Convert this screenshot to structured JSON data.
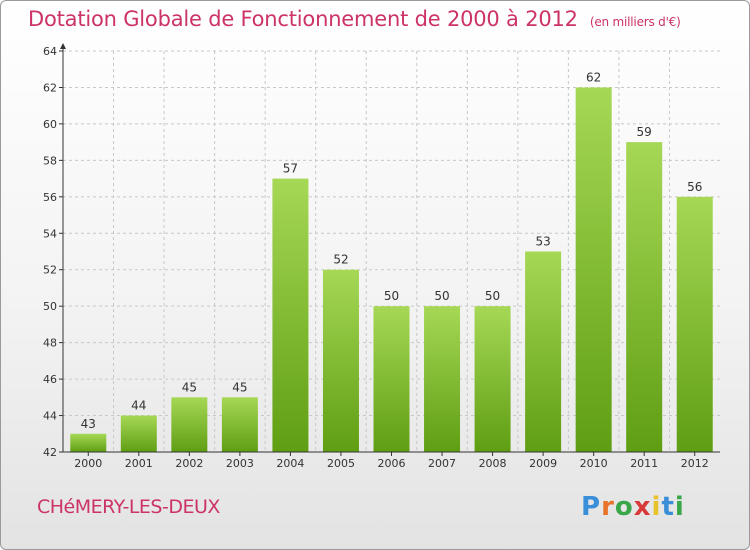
{
  "header": {
    "title": "Dotation Globale de Fonctionnement de 2000 à 2012",
    "unit": "(en milliers d'€)"
  },
  "footer": {
    "commune": "CHéMERY-LES-DEUX",
    "logo": {
      "text": "Proxiti",
      "letter_colors": [
        "#3a8fd8",
        "#e8742a",
        "#3aa64a",
        "#d83a3a",
        "#e8c22a",
        "#3a8fd8",
        "#3aa64a"
      ]
    }
  },
  "colors": {
    "title": "#cc3366",
    "bar_light": "#a6d855",
    "bar_dark": "#5f9e13",
    "axis": "#333333",
    "grid": "#c8c8c8"
  },
  "chart_data": {
    "type": "bar",
    "categories": [
      "2000",
      "2001",
      "2002",
      "2003",
      "2004",
      "2005",
      "2006",
      "2007",
      "2008",
      "2009",
      "2010",
      "2011",
      "2012"
    ],
    "values": [
      43,
      44,
      45,
      45,
      57,
      52,
      50,
      50,
      50,
      53,
      62,
      59,
      56
    ],
    "title": "Dotation Globale de Fonctionnement de 2000 à 2012",
    "xlabel": "",
    "ylabel": "",
    "ylim": [
      42,
      64
    ],
    "yticks": [
      42,
      44,
      46,
      48,
      50,
      52,
      54,
      56,
      58,
      60,
      62,
      64
    ],
    "grid": "horizontal dashed",
    "legend": "none"
  }
}
